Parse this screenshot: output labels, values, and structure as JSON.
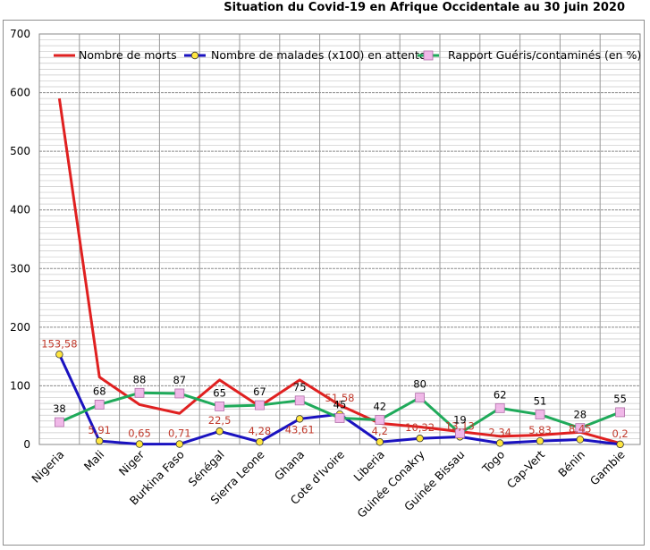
{
  "chart_data": {
    "type": "line",
    "title": "Situation du Covid-19 en Afrique Occidentale au 30 juin 2020",
    "categories": [
      "Nigeria",
      "Mali",
      "Niger",
      "Burkina Faso",
      "Sénégal",
      "Sierra Leone",
      "Ghana",
      "Cote d'Ivoire",
      "Liberia",
      "Guinée Conakry",
      "Guinée Bissau",
      "Togo",
      "Cap-Vert",
      "Bénin",
      "Gambie"
    ],
    "ylim": [
      0,
      700
    ],
    "yticks": [
      0,
      100,
      200,
      300,
      400,
      500,
      600,
      700
    ],
    "grid": true,
    "legend_position": "top",
    "series": [
      {
        "name": "Nombre de morts",
        "color": "#e02020",
        "marker": "none",
        "values": [
          590,
          115,
          68,
          53,
          110,
          65,
          110,
          67,
          36,
          30,
          22,
          14,
          16,
          21,
          2
        ],
        "labels": []
      },
      {
        "name": "Nombre de malades (x100) en attente",
        "color": "#1a12c0",
        "marker": "circle",
        "marker_color": "#ffe640",
        "values": [
          153.58,
          5.91,
          0.65,
          0.71,
          22.5,
          4.28,
          43.61,
          51.58,
          4.2,
          10.32,
          13.13,
          2.34,
          5.83,
          8.45,
          0.2
        ],
        "labels": [
          "153,58",
          "5,91",
          "0,65",
          "0,71",
          "22,5",
          "4,28",
          "43,61",
          "51,58",
          "4,2",
          "10,32",
          "13,13",
          "2,34",
          "5,83",
          "8,45",
          "0,2"
        ],
        "label_color": "#c0392b"
      },
      {
        "name": "Rapport Guéris/contaminés (en %)",
        "color": "#1faa5a",
        "marker": "square",
        "marker_color": "#f0b8e8",
        "values": [
          38,
          68,
          88,
          87,
          65,
          67,
          75,
          45,
          42,
          80,
          19,
          62,
          51,
          28,
          55
        ],
        "labels": [
          "38",
          "68",
          "88",
          "87",
          "65",
          "67",
          "75",
          "45",
          "42",
          "80",
          "19",
          "62",
          "51",
          "28",
          "55"
        ],
        "label_color": "#000000"
      }
    ]
  }
}
